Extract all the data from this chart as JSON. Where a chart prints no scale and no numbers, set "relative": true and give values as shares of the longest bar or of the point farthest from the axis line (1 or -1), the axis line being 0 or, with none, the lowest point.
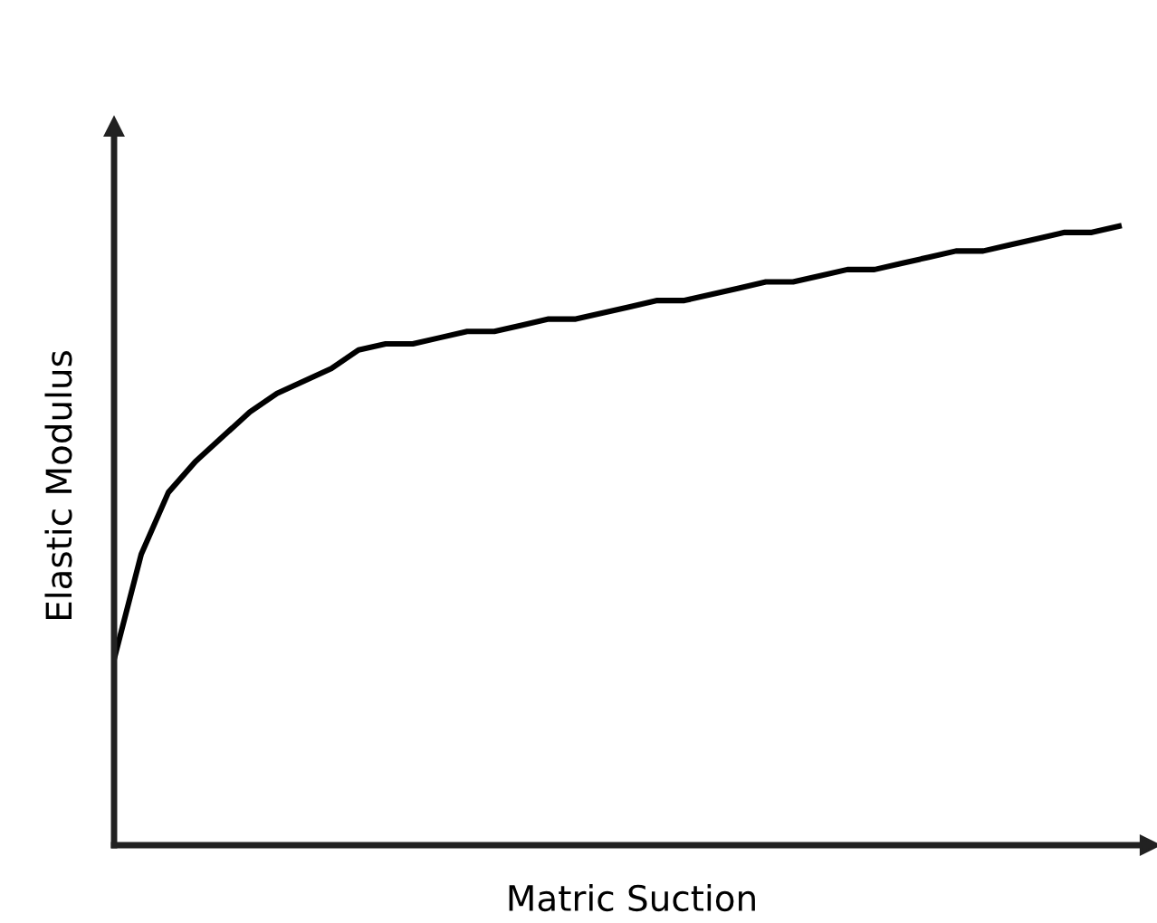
{
  "chart_data": {
    "type": "line",
    "relative": true,
    "xlabel": "Matric Suction",
    "ylabel": "Elastic Modulus",
    "marker": "none",
    "line_style": "solid",
    "grid": false,
    "legend": false,
    "categories": [
      null,
      null,
      null,
      null,
      null,
      null,
      null,
      null,
      null,
      null,
      null,
      null,
      null,
      null,
      null,
      null,
      null,
      null,
      null,
      null,
      null,
      null,
      null,
      null,
      null,
      null,
      null,
      null,
      null,
      null,
      null,
      null,
      null,
      null,
      null,
      null,
      null,
      null
    ],
    "series": [
      {
        "color": "#000000",
        "values": [
          0.3,
          0.47,
          0.57,
          0.62,
          0.66,
          0.7,
          0.73,
          0.75,
          0.77,
          0.8,
          0.81,
          0.81,
          0.82,
          0.83,
          0.83,
          0.84,
          0.85,
          0.85,
          0.86,
          0.87,
          0.88,
          0.88,
          0.89,
          0.9,
          0.91,
          0.91,
          0.92,
          0.93,
          0.93,
          0.94,
          0.95,
          0.96,
          0.96,
          0.97,
          0.98,
          0.99,
          0.99,
          1.0
        ]
      }
    ]
  }
}
